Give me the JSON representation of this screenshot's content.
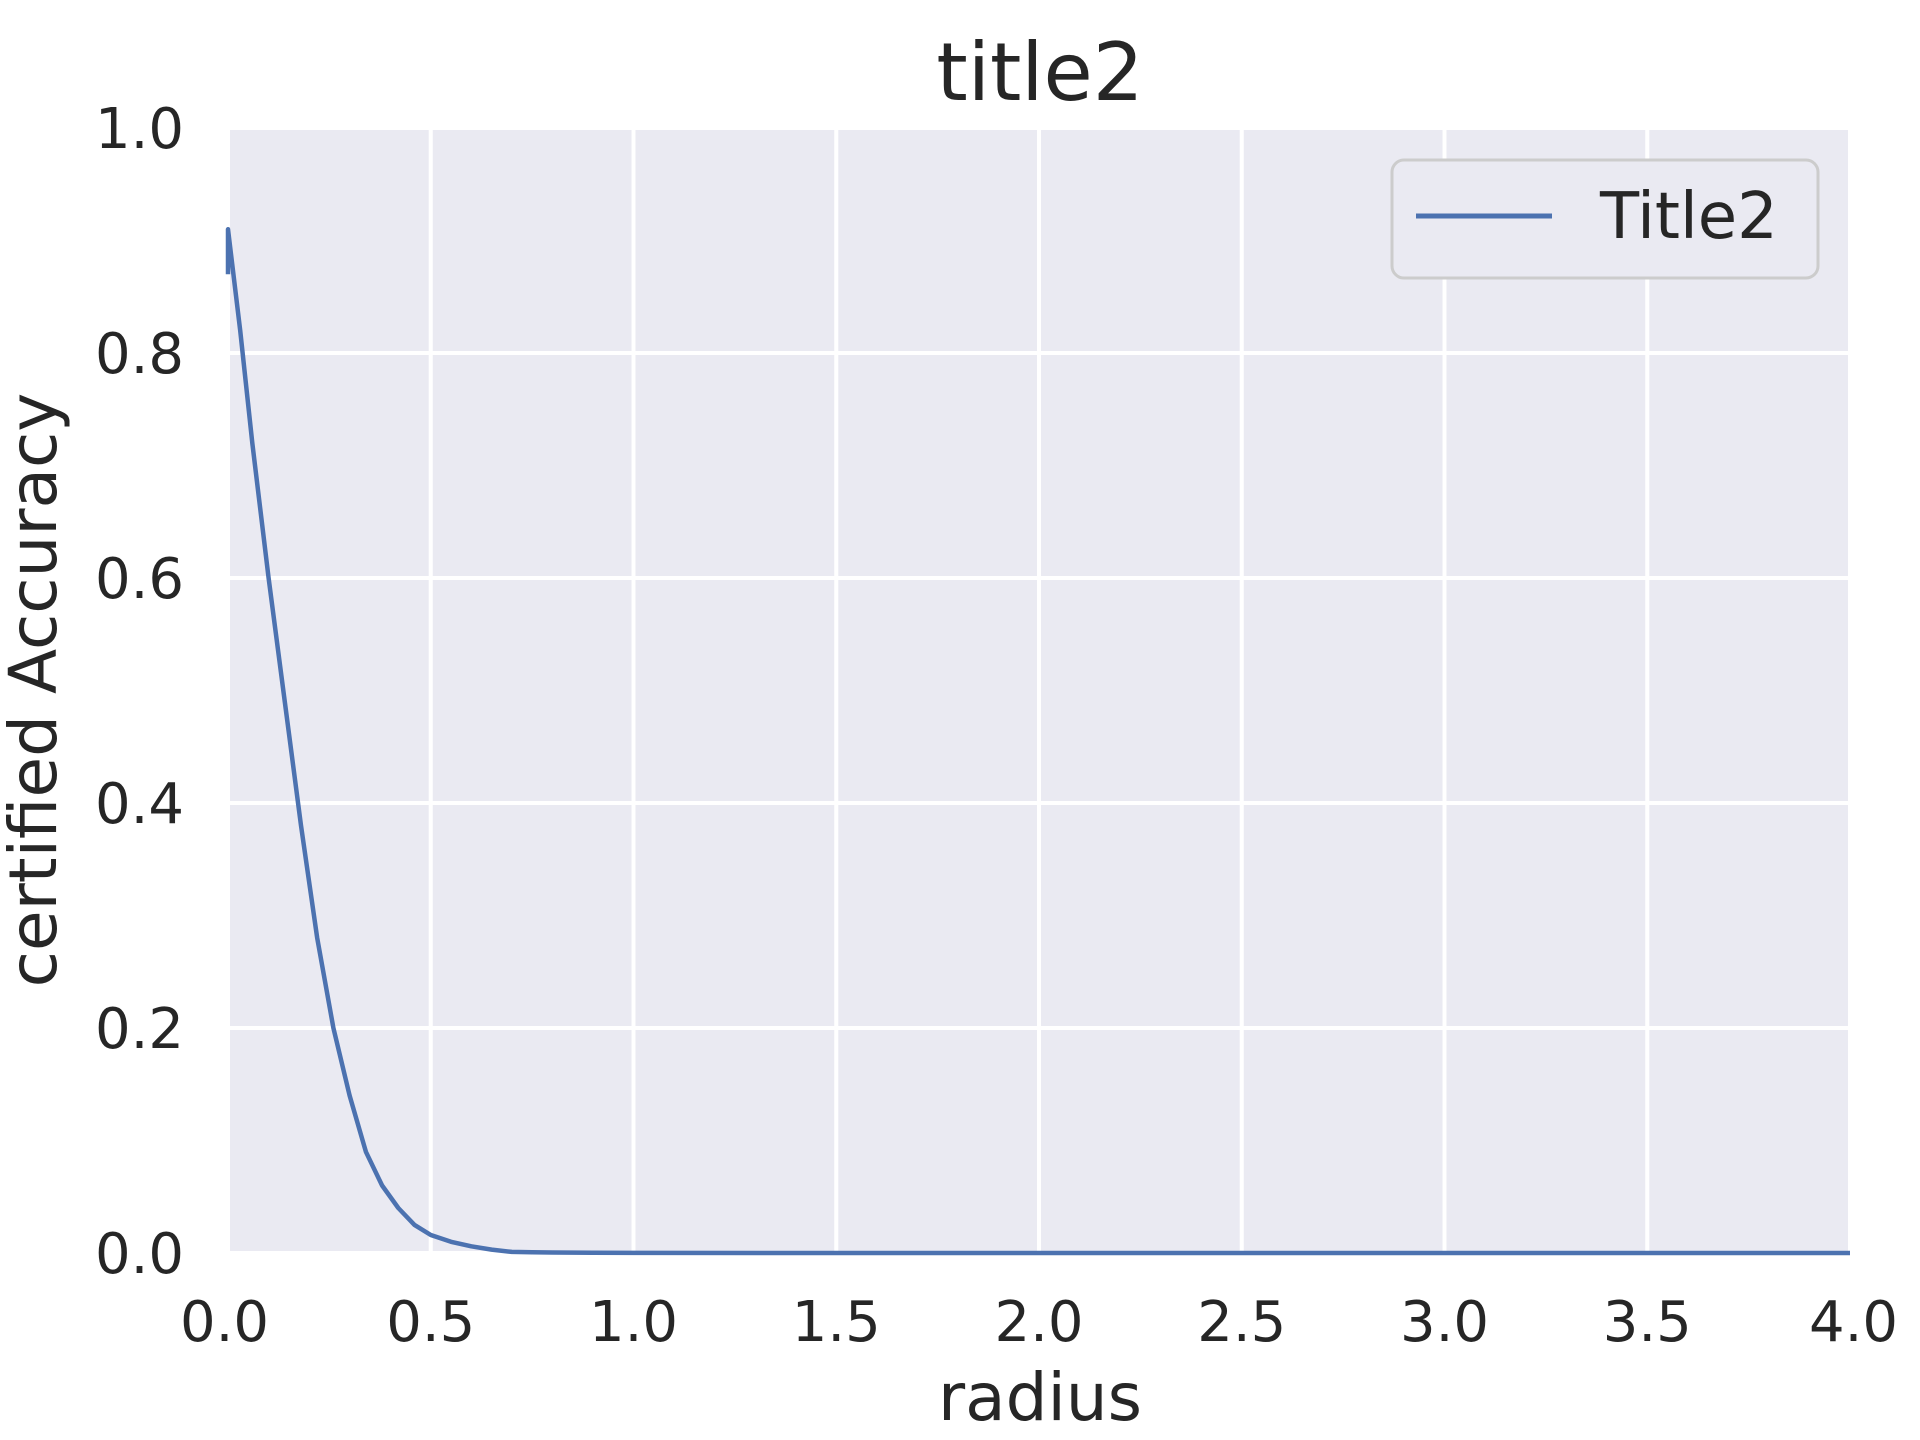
{
  "chart_data": {
    "type": "line",
    "title": "title2",
    "xlabel": "radius",
    "ylabel": "certified Accuracy",
    "xlim": [
      0.0,
      4.0
    ],
    "ylim": [
      0.0,
      1.0
    ],
    "xticks": [
      "0.0",
      "0.5",
      "1.0",
      "1.5",
      "2.0",
      "2.5",
      "3.0",
      "3.5",
      "4.0"
    ],
    "yticks": [
      "0.0",
      "0.2",
      "0.4",
      "0.6",
      "0.8",
      "1.0"
    ],
    "grid": true,
    "legend_position": "top-right",
    "background_color": "#eaeaf2",
    "grid_color": "#ffffff",
    "series": [
      {
        "name": "Title2",
        "color": "#4c72b0",
        "x": [
          0.0,
          0.0,
          0.03,
          0.06,
          0.1,
          0.14,
          0.18,
          0.22,
          0.26,
          0.3,
          0.34,
          0.38,
          0.42,
          0.46,
          0.5,
          0.55,
          0.6,
          0.65,
          0.7,
          0.75,
          0.8,
          0.9,
          1.0,
          1.5,
          2.0,
          2.5,
          3.0,
          3.5,
          4.0
        ],
        "y": [
          0.87,
          0.91,
          0.82,
          0.72,
          0.6,
          0.49,
          0.38,
          0.28,
          0.2,
          0.14,
          0.09,
          0.06,
          0.04,
          0.025,
          0.016,
          0.01,
          0.006,
          0.003,
          0.001,
          0.0006,
          0.0004,
          0.0002,
          0.0001,
          0.0,
          0.0,
          0.0,
          0.0,
          0.0,
          0.0
        ]
      }
    ]
  }
}
